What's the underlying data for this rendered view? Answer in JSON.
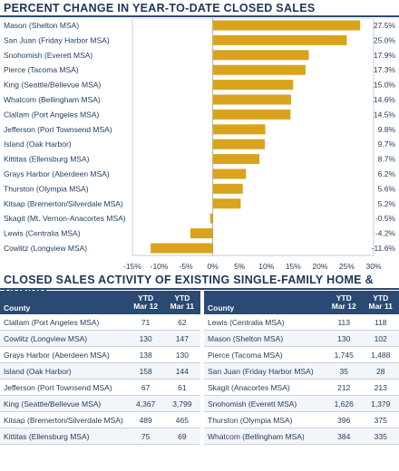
{
  "chart_title": "PERCENT CHANGE IN YEAR-TO-DATE CLOSED SALES",
  "chart_data": {
    "type": "bar",
    "orientation": "horizontal",
    "categories": [
      "Mason (Shelton MSA)",
      "San Juan (Friday Harbor MSA)",
      "Snohomish (Everett MSA)",
      "Pierce (Tacoma MSA)",
      "King (Seattle/Bellevue MSA)",
      "Whatcom (Bellingham MSA)",
      "Clallam (Port Angeles MSA)",
      "Jefferson (Port Townsend MSA)",
      "Island (Oak Harbor)",
      "Kittitas (Ellensburg MSA)",
      "Grays Harbor (Aberdeen MSA)",
      "Thurston (Olympia MSA)",
      "Kitsap (Bremerton/Silverdale MSA)",
      "Skagit (Mt. Vernon-Anacortes MSA)",
      "Lewis (Centralia MSA)",
      "Cowlitz (Longview MSA)"
    ],
    "values": [
      27.5,
      25.0,
      17.9,
      17.3,
      15.0,
      14.6,
      14.5,
      9.8,
      9.7,
      8.7,
      6.2,
      5.6,
      5.2,
      -0.5,
      -4.2,
      -11.6
    ],
    "value_labels": [
      "27.5%",
      "25.0%",
      "17.9%",
      "17.3%",
      "15.0%",
      "14.6%",
      "14.5%",
      "9.8%",
      "9.7%",
      "8.7%",
      "6.2%",
      "5.6%",
      "5.2%",
      "-0.5%",
      "-4.2%",
      "-11.6%"
    ],
    "xlim": [
      -15,
      30
    ],
    "xticks": [
      -15,
      -10,
      -5,
      0,
      5,
      10,
      15,
      20,
      25,
      30
    ],
    "xtick_labels": [
      "-15%",
      "-10%",
      "-5%",
      "0%",
      "5%",
      "10%",
      "15%",
      "20%",
      "25%",
      "30%"
    ],
    "bar_color": "#d9a31e",
    "grid": false
  },
  "table_title": "CLOSED SALES ACTIVITY OF EXISTING SINGLE-FAMILY HOME & CONDO",
  "table": {
    "headers": {
      "county": "County",
      "col1_line1": "YTD",
      "col1_line2": "Mar 12",
      "col2_line1": "YTD",
      "col2_line2": "Mar 11"
    },
    "left_rows": [
      {
        "county": "Clallam (Port Angeles MSA)",
        "ytd12": "71",
        "ytd11": "62"
      },
      {
        "county": "Cowlitz (Longview MSA)",
        "ytd12": "130",
        "ytd11": "147"
      },
      {
        "county": "Grays Harbor (Aberdeen MSA)",
        "ytd12": "138",
        "ytd11": "130"
      },
      {
        "county": "Island (Oak Harbor)",
        "ytd12": "158",
        "ytd11": "144"
      },
      {
        "county": "Jefferson (Port Townsend MSA)",
        "ytd12": "67",
        "ytd11": "61"
      },
      {
        "county": "King (Seattle/Bellevue MSA)",
        "ytd12": "4,367",
        "ytd11": "3,799"
      },
      {
        "county": "Kitsap (Bremerton/Silverdale MSA)",
        "ytd12": "489",
        "ytd11": "465"
      },
      {
        "county": "Kittitas (Ellensburg MSA)",
        "ytd12": "75",
        "ytd11": "69"
      }
    ],
    "right_rows": [
      {
        "county": "Lewis (Centralia MSA)",
        "ytd12": "113",
        "ytd11": "118"
      },
      {
        "county": "Mason (Shelton MSA)",
        "ytd12": "130",
        "ytd11": "102"
      },
      {
        "county": "Pierce (Tacoma MSA)",
        "ytd12": "1,745",
        "ytd11": "1,488"
      },
      {
        "county": "San Juan (Friday Harbor MSA)",
        "ytd12": "35",
        "ytd11": "28"
      },
      {
        "county": "Skagit (Anacortes MSA)",
        "ytd12": "212",
        "ytd11": "213"
      },
      {
        "county": "Snohomish (Everett MSA)",
        "ytd12": "1,626",
        "ytd11": "1,379"
      },
      {
        "county": "Thurston (Olympia MSA)",
        "ytd12": "396",
        "ytd11": "375"
      },
      {
        "county": "Whatcom (Bellingham MSA)",
        "ytd12": "384",
        "ytd11": "335"
      }
    ]
  },
  "colors": {
    "header_bg": "#2b4a73",
    "text": "#1f3a5a",
    "bar": "#d9a31e"
  }
}
